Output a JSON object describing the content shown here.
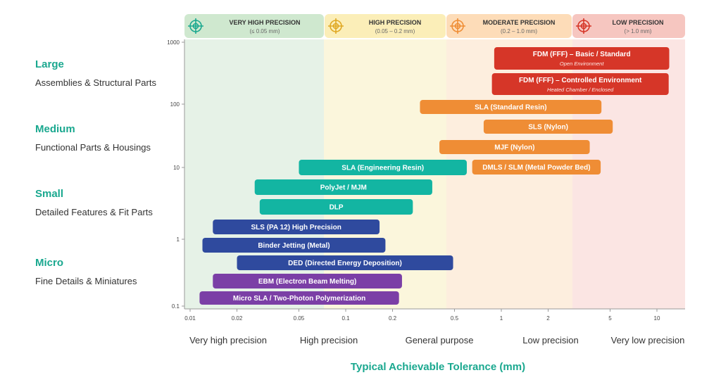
{
  "colors": {
    "very_high": "#e6f2e7",
    "high": "#fbf6dc",
    "moderate": "#fdeede",
    "low": "#fbe5e3",
    "very_high_header": "#cfe8cf",
    "high_header": "#fbeeb8",
    "moderate_header": "#fddcb8",
    "low_header": "#f6c6c0",
    "teal": "#13b5a2",
    "navy": "#2f4a9e",
    "purple": "#7b3fa6",
    "orange": "#ef8d35",
    "red": "#d63628",
    "accent_title": "#1aa88f"
  },
  "precision_bands": [
    {
      "label": "VERY HIGH PRECISION",
      "range": "(≤ 0.05 mm)",
      "icon": "target-icon",
      "color": "#1aa88f"
    },
    {
      "label": "HIGH PRECISION",
      "range": "(0.05 – 0.2 mm)",
      "icon": "target-icon",
      "color": "#e0a823"
    },
    {
      "label": "MODERATE PRECISION",
      "range": "(0.2 – 1.0 mm)",
      "icon": "target-icon",
      "color": "#ef8d35"
    },
    {
      "label": "LOW PRECISION",
      "range": "(> 1.0 mm)",
      "icon": "target-icon",
      "color": "#d63628"
    }
  ],
  "size_categories": [
    {
      "name": "Large",
      "desc": "Assemblies & Structural Parts"
    },
    {
      "name": "Medium",
      "desc": "Functional Parts & Housings"
    },
    {
      "name": "Small",
      "desc": "Detailed Features & Fit Parts"
    },
    {
      "name": "Micro",
      "desc": "Fine Details & Miniatures"
    }
  ],
  "chart_data": {
    "type": "bar",
    "orientation": "horizontal-range",
    "xlabel": "Typical Achievable Tolerance (mm)",
    "x_scale": "log",
    "y_scale": "log",
    "x_ticks": [
      "0.01",
      "0.02",
      "0.05",
      "0.1",
      "0.2",
      "0.5",
      "1",
      "2",
      "5",
      "10"
    ],
    "y_ticks": [
      "1000",
      "100",
      "10",
      "1",
      "0.1"
    ],
    "x_bands": [
      "Very high precision",
      "High precision",
      "General purpose",
      "Low precision",
      "Very low precision"
    ],
    "processes": [
      {
        "name": "FDM (FFF) – Basic / Standard",
        "sub": "Open Environment",
        "x_min": 0.9,
        "x_max": 12,
        "color": "red"
      },
      {
        "name": "FDM (FFF) – Controlled Environment",
        "sub": "Heated Chamber / Enclosed",
        "x_min": 0.87,
        "x_max": 11.9,
        "color": "red"
      },
      {
        "name": "SLA (Standard Resin)",
        "x_min": 0.3,
        "x_max": 4.4,
        "color": "orange"
      },
      {
        "name": "SLS (Nylon)",
        "x_min": 0.77,
        "x_max": 5.2,
        "color": "orange"
      },
      {
        "name": "MJF (Nylon)",
        "x_min": 0.4,
        "x_max": 3.7,
        "color": "orange"
      },
      {
        "name": "SLA (Engineering Resin)",
        "x_min": 0.05,
        "x_max": 0.6,
        "color": "teal"
      },
      {
        "name": "DMLS / SLM (Metal Powder Bed)",
        "x_min": 0.65,
        "x_max": 4.35,
        "color": "orange"
      },
      {
        "name": "PolyJet / MJM",
        "x_min": 0.026,
        "x_max": 0.36,
        "color": "teal"
      },
      {
        "name": "DLP",
        "x_min": 0.028,
        "x_max": 0.27,
        "color": "teal"
      },
      {
        "name": "SLS (PA 12) High Precision",
        "x_min": 0.014,
        "x_max": 0.165,
        "color": "navy"
      },
      {
        "name": "Binder Jetting (Metal)",
        "x_min": 0.012,
        "x_max": 0.18,
        "color": "navy"
      },
      {
        "name": "DED (Directed Energy Deposition)",
        "x_min": 0.02,
        "x_max": 0.49,
        "color": "navy"
      },
      {
        "name": "EBM (Electron Beam Melting)",
        "x_min": 0.014,
        "x_max": 0.23,
        "color": "purple"
      },
      {
        "name": "Micro SLA / Two-Photon Polymerization",
        "x_min": 0.0115,
        "x_max": 0.22,
        "color": "purple"
      }
    ]
  }
}
